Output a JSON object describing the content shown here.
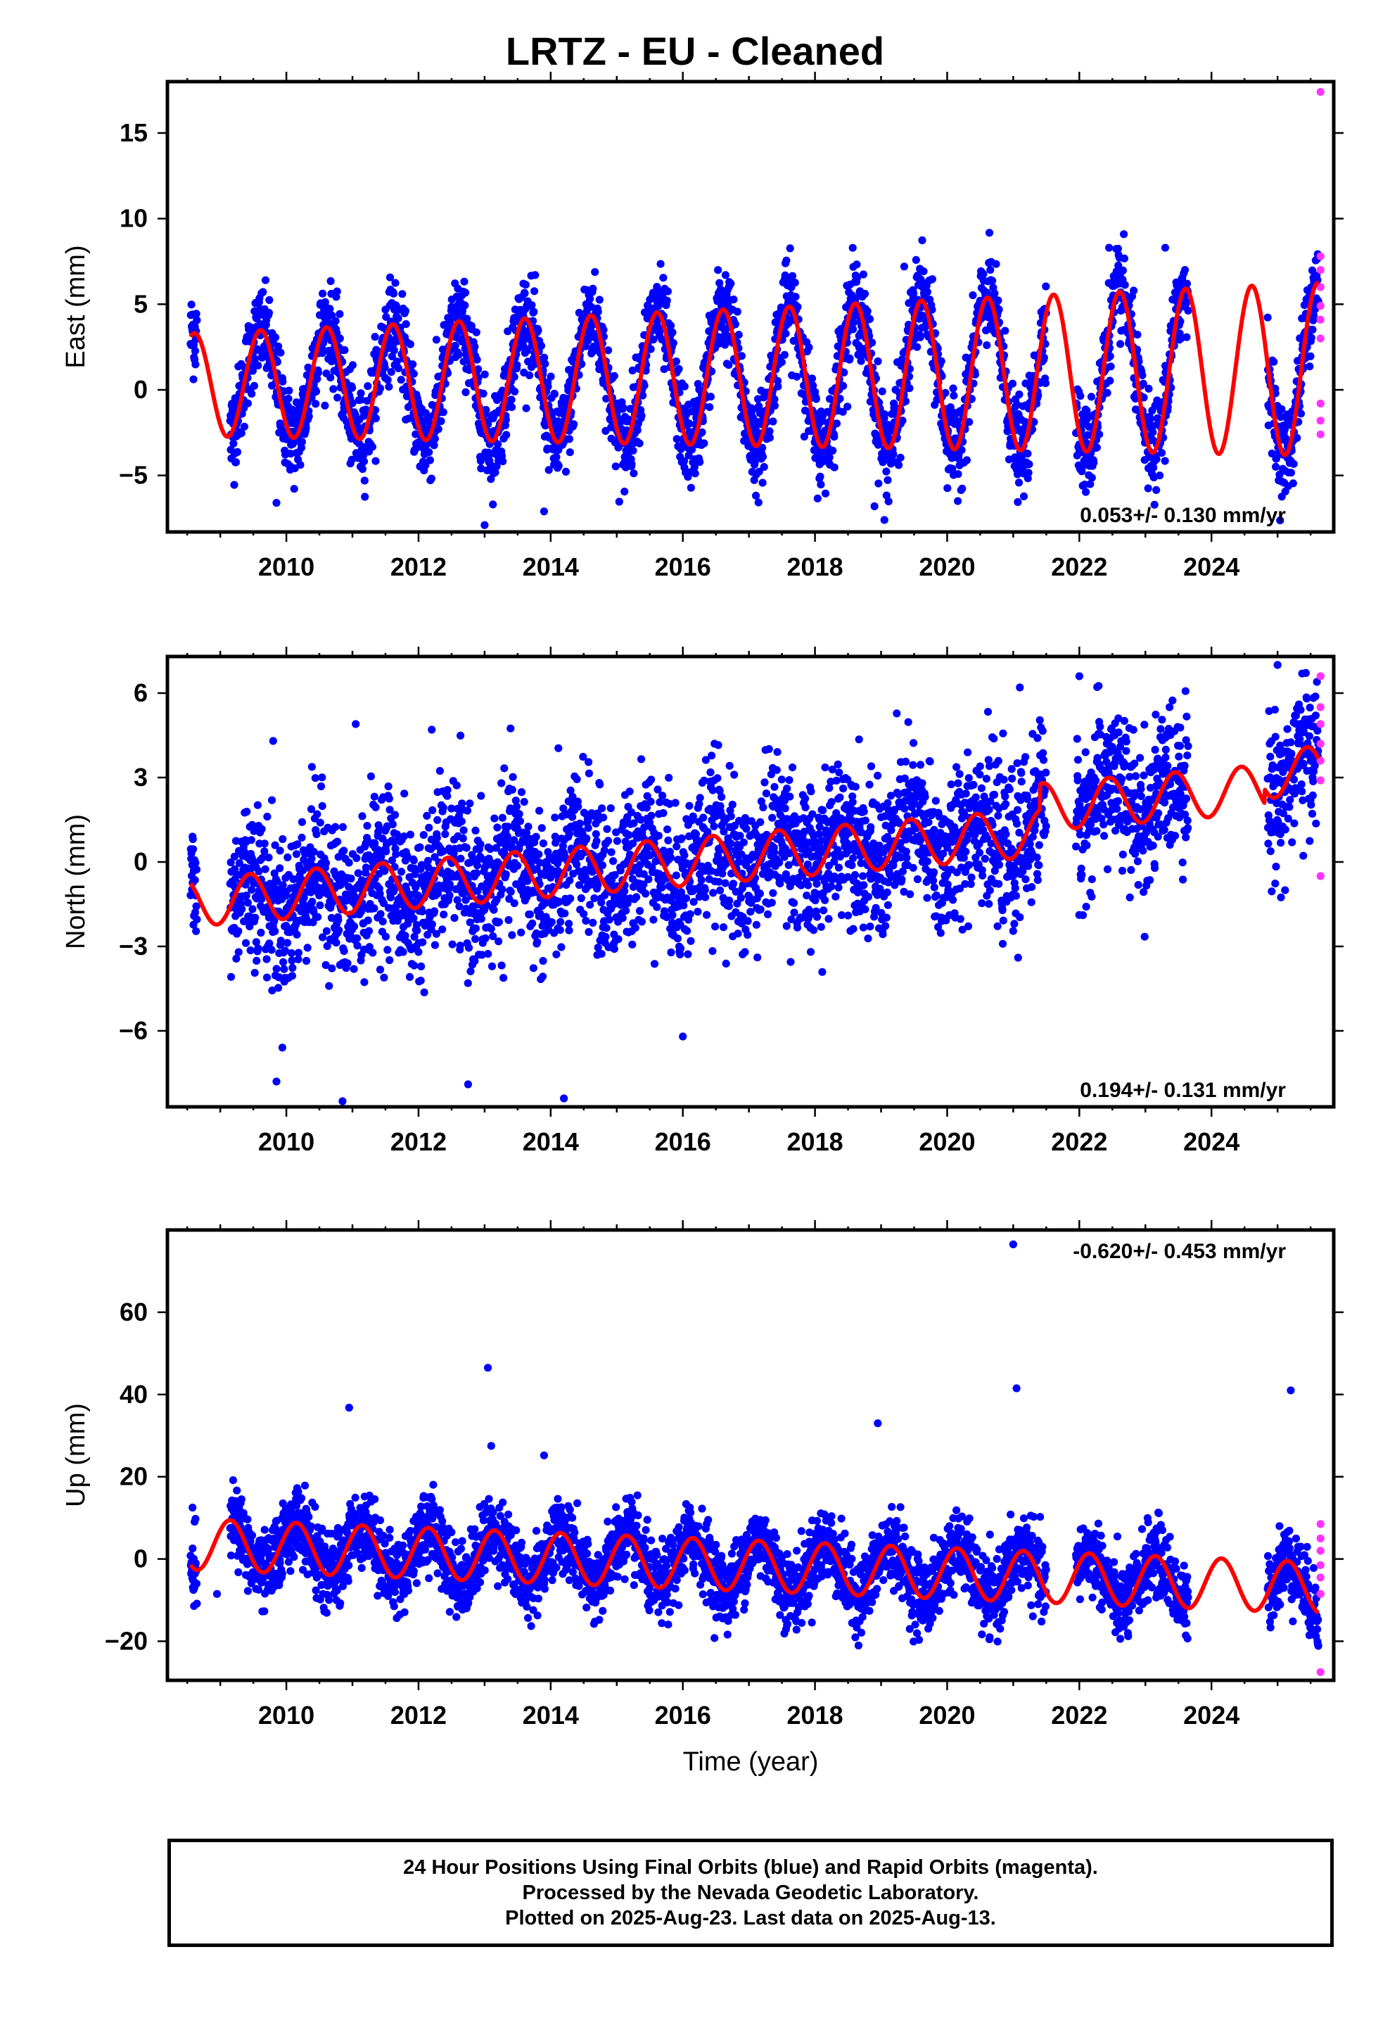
{
  "title": "LRTZ  - EU - Cleaned",
  "caption": [
    "24 Hour Positions Using Final Orbits (blue) and Rapid Orbits (magenta).",
    "Processed by the Nevada Geodetic Laboratory.",
    "Plotted on 2025-Aug-23. Last data on 2025-Aug-13."
  ],
  "colors": {
    "final_orbits": "#0000ff",
    "rapid_orbits": "#ff33ff",
    "model": "#ff0000",
    "frame": "#000000"
  },
  "chart_data": [
    {
      "type": "scatter",
      "component": "east",
      "ylabel": "East (mm)",
      "xlabel": "",
      "xlim": [
        2008.2,
        2025.85
      ],
      "ylim": [
        -8.3,
        18
      ],
      "xticks": [
        2010,
        2012,
        2014,
        2016,
        2018,
        2020,
        2022,
        2024
      ],
      "yticks": [
        -5,
        0,
        5,
        10,
        15
      ],
      "ytick_labels": [
        "−5",
        "0",
        "5",
        "10",
        "15"
      ],
      "rate_label": "0.053+/- 0.130 mm/yr",
      "rate_position": "bottom-right",
      "model": {
        "offset": 0.3,
        "rate": 0.053,
        "annual_amplitude": 3.0,
        "annual_phase": -0.36,
        "amplitude_growth": 0.04,
        "start": 2008.55,
        "end": 2025.62
      },
      "data_periods": [
        [
          2008.55,
          2008.65
        ],
        [
          2009.15,
          2021.5
        ],
        [
          2021.95,
          2023.65
        ],
        [
          2024.85,
          2025.62
        ]
      ],
      "scatter_spread": 1.3,
      "outliers": [
        [
          2008.58,
          4.4
        ],
        [
          2013.0,
          -7.9
        ],
        [
          2018.9,
          -6.8
        ],
        [
          2019.05,
          -7.6
        ],
        [
          2022.45,
          8.3
        ],
        [
          2023.3,
          8.3
        ],
        [
          2019.35,
          7.2
        ],
        [
          2009.85,
          -6.6
        ],
        [
          2013.9,
          -7.1
        ]
      ],
      "rapid_points": [
        [
          2025.65,
          17.4
        ],
        [
          2025.65,
          7.8
        ],
        [
          2025.65,
          7.0
        ],
        [
          2025.65,
          6.0
        ],
        [
          2025.65,
          4.9
        ],
        [
          2025.65,
          4.1
        ],
        [
          2025.65,
          3.0
        ],
        [
          2025.65,
          -0.8
        ],
        [
          2025.65,
          -1.8
        ],
        [
          2025.65,
          -2.6
        ]
      ]
    },
    {
      "type": "scatter",
      "component": "north",
      "ylabel": "North (mm)",
      "xlabel": "",
      "xlim": [
        2008.2,
        2025.85
      ],
      "ylim": [
        -8.7,
        7.3
      ],
      "xticks": [
        2010,
        2012,
        2014,
        2016,
        2018,
        2020,
        2022,
        2024
      ],
      "yticks": [
        -6,
        -3,
        0,
        3,
        6
      ],
      "ytick_labels": [
        "−6",
        "−3",
        "0",
        "3",
        "6"
      ],
      "rate_label": "0.194+/- 0.131 mm/yr",
      "rate_position": "bottom-right",
      "model": {
        "offset": -1.45,
        "rate": 0.194,
        "annual_amplitude": 0.85,
        "annual_phase": -0.2,
        "amplitude_growth": 0.0,
        "start": 2008.55,
        "end": 2025.62,
        "jumps": [
          [
            2021.4,
            0.9
          ],
          [
            2024.8,
            0.5
          ]
        ]
      },
      "data_periods": [
        [
          2008.55,
          2008.65
        ],
        [
          2009.15,
          2021.5
        ],
        [
          2021.95,
          2023.65
        ],
        [
          2024.85,
          2025.62
        ]
      ],
      "scatter_spread": 1.35,
      "outliers": [
        [
          2008.58,
          0.9
        ],
        [
          2009.8,
          4.3
        ],
        [
          2011.05,
          4.9
        ],
        [
          2012.2,
          4.7
        ],
        [
          2009.85,
          -7.8
        ],
        [
          2010.85,
          -8.5
        ],
        [
          2012.75,
          -7.9
        ],
        [
          2014.2,
          -8.4
        ],
        [
          2016.0,
          -6.2
        ],
        [
          2021.1,
          6.2
        ],
        [
          2022.0,
          6.6
        ],
        [
          2025.0,
          7.0
        ]
      ],
      "rapid_points": [
        [
          2025.65,
          6.6
        ],
        [
          2025.65,
          5.5
        ],
        [
          2025.65,
          4.9
        ],
        [
          2025.65,
          4.2
        ],
        [
          2025.65,
          3.6
        ],
        [
          2025.65,
          2.9
        ],
        [
          2025.65,
          -0.5
        ]
      ]
    },
    {
      "type": "scatter",
      "component": "up",
      "ylabel": "Up (mm)",
      "xlabel": "Time (year)",
      "xlim": [
        2008.2,
        2025.85
      ],
      "ylim": [
        -29.5,
        80
      ],
      "xticks": [
        2010,
        2012,
        2014,
        2016,
        2018,
        2020,
        2022,
        2024
      ],
      "yticks": [
        -20,
        0,
        20,
        40,
        60
      ],
      "ytick_labels": [
        "−20",
        "0",
        "20",
        "40",
        "60"
      ],
      "rate_label": "-0.620+/- 0.453 mm/yr",
      "rate_position": "top-right",
      "model": {
        "offset": 3.6,
        "rate": -0.62,
        "annual_amplitude": 6.2,
        "annual_phase": 0.1,
        "amplitude_growth": 0.0,
        "start": 2008.55,
        "end": 2025.62
      },
      "data_periods": [
        [
          2008.55,
          2008.65
        ],
        [
          2009.15,
          2021.5
        ],
        [
          2021.95,
          2023.65
        ],
        [
          2024.85,
          2025.62
        ]
      ],
      "scatter_spread": 4.5,
      "outliers": [
        [
          2008.58,
          12.5
        ],
        [
          2008.95,
          -8.5
        ],
        [
          2010.95,
          36.8
        ],
        [
          2013.05,
          46.5
        ],
        [
          2013.1,
          27.5
        ],
        [
          2013.9,
          25.2
        ],
        [
          2018.95,
          33.0
        ],
        [
          2021.0,
          76.5
        ],
        [
          2021.05,
          41.5
        ],
        [
          2025.2,
          41.0
        ]
      ],
      "rapid_points": [
        [
          2025.65,
          8.5
        ],
        [
          2025.65,
          5.0
        ],
        [
          2025.65,
          2.0
        ],
        [
          2025.65,
          -1.5
        ],
        [
          2025.65,
          -4.5
        ],
        [
          2025.65,
          -8.5
        ],
        [
          2025.65,
          -27.5
        ]
      ]
    }
  ]
}
